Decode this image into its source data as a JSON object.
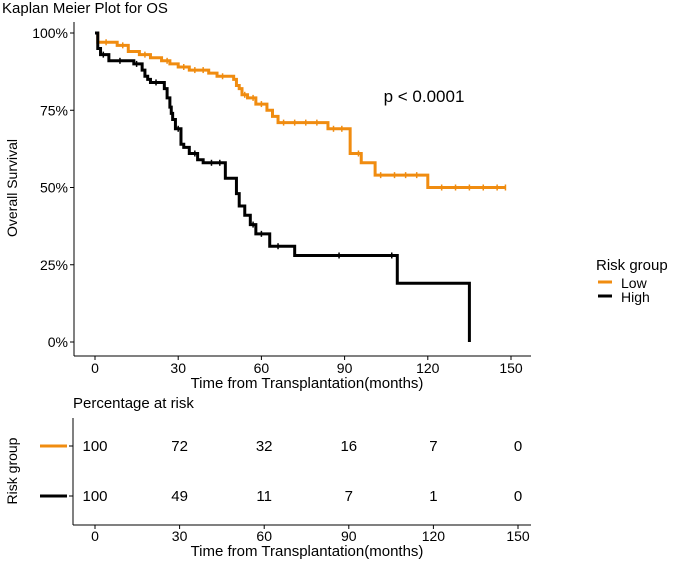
{
  "chart_data": [
    {
      "type": "line",
      "chart_kind": "kaplan-meier",
      "title": "Kaplan Meier Plot for OS",
      "xlabel": "Time from Transplantation(months)",
      "ylabel": "Overall Survival",
      "xlim": [
        0,
        150
      ],
      "ylim": [
        0,
        1
      ],
      "x_ticks": [
        0,
        30,
        60,
        90,
        120,
        150
      ],
      "y_ticks": [
        0,
        0.25,
        0.5,
        0.75,
        1.0
      ],
      "y_tick_labels": [
        "0%",
        "25%",
        "50%",
        "75%",
        "100%"
      ],
      "grid": false,
      "annotation": "p < 0.0001",
      "legend": {
        "title": "Risk group",
        "position": "right",
        "entries": [
          "Low",
          "High"
        ]
      },
      "series": [
        {
          "name": "Low",
          "color": "#F08C10",
          "step_points": [
            [
              0,
              1.0
            ],
            [
              1,
              0.97
            ],
            [
              8,
              0.96
            ],
            [
              12,
              0.94
            ],
            [
              16,
              0.93
            ],
            [
              20,
              0.92
            ],
            [
              24,
              0.91
            ],
            [
              27,
              0.9
            ],
            [
              30,
              0.89
            ],
            [
              34,
              0.88
            ],
            [
              41,
              0.87
            ],
            [
              44,
              0.86
            ],
            [
              50,
              0.85
            ],
            [
              51,
              0.83
            ],
            [
              52,
              0.82
            ],
            [
              53,
              0.8
            ],
            [
              55,
              0.79
            ],
            [
              58,
              0.77
            ],
            [
              62,
              0.75
            ],
            [
              64,
              0.73
            ],
            [
              66,
              0.71
            ],
            [
              83,
              0.71
            ],
            [
              84,
              0.69
            ],
            [
              91,
              0.69
            ],
            [
              92,
              0.61
            ],
            [
              96,
              0.58
            ],
            [
              101,
              0.54
            ],
            [
              119,
              0.54
            ],
            [
              120,
              0.5
            ],
            [
              148,
              0.5
            ]
          ],
          "censor_times": [
            4,
            10,
            18,
            26,
            32,
            36,
            39,
            46,
            54,
            57,
            60,
            68,
            72,
            76,
            80,
            86,
            89,
            95,
            103,
            108,
            112,
            116,
            125,
            130,
            135,
            140,
            145,
            148
          ]
        },
        {
          "name": "High",
          "color": "#000000",
          "step_points": [
            [
              0,
              1.0
            ],
            [
              1,
              0.95
            ],
            [
              2,
              0.93
            ],
            [
              5,
              0.91
            ],
            [
              14,
              0.9
            ],
            [
              17,
              0.88
            ],
            [
              18,
              0.86
            ],
            [
              19,
              0.85
            ],
            [
              20,
              0.84
            ],
            [
              25,
              0.82
            ],
            [
              26,
              0.79
            ],
            [
              27,
              0.76
            ],
            [
              27.5,
              0.74
            ],
            [
              28,
              0.72
            ],
            [
              29,
              0.69
            ],
            [
              31,
              0.64
            ],
            [
              32,
              0.63
            ],
            [
              34,
              0.61
            ],
            [
              37,
              0.59
            ],
            [
              39,
              0.58
            ],
            [
              47,
              0.53
            ],
            [
              51,
              0.48
            ],
            [
              52,
              0.44
            ],
            [
              54,
              0.41
            ],
            [
              56,
              0.38
            ],
            [
              58,
              0.35
            ],
            [
              63,
              0.31
            ],
            [
              72,
              0.28
            ],
            [
              109,
              0.19
            ],
            [
              135,
              0.0
            ]
          ],
          "censor_times": [
            3,
            9,
            15,
            22,
            30,
            36,
            42,
            45,
            57,
            60,
            66,
            88,
            107
          ]
        }
      ]
    },
    {
      "type": "table",
      "title": "Percentage at risk",
      "ylabel": "Risk group",
      "xlabel": "Time from Transplantation(months)",
      "x_ticks": [
        0,
        30,
        60,
        90,
        120,
        150
      ],
      "rows": [
        {
          "group": "Low",
          "color": "#F08C10",
          "values": [
            "100",
            "72",
            "32",
            "16",
            "7",
            "0"
          ]
        },
        {
          "group": "High",
          "color": "#000000",
          "values": [
            "100",
            "49",
            "11",
            "7",
            "1",
            "0"
          ]
        }
      ]
    }
  ]
}
